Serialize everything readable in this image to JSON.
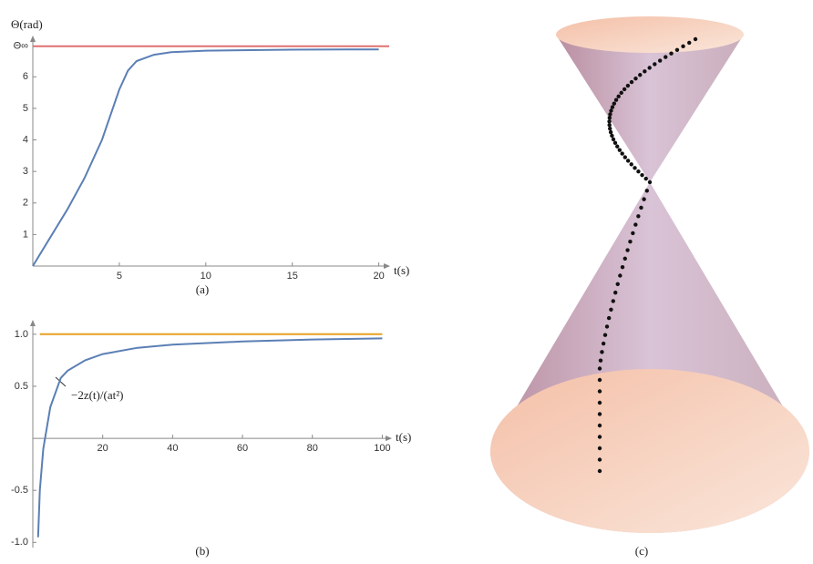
{
  "chart_data": [
    {
      "type": "line",
      "caption": "(a)",
      "y_label": "Θ(rad)",
      "x_label": "t(s)",
      "xlim": [
        0,
        20.6
      ],
      "ylim": [
        0,
        7.28
      ],
      "xticks": [
        5,
        10,
        15,
        20
      ],
      "yticks": [
        1,
        2,
        3,
        4,
        5,
        6,
        {
          "value": 6.97,
          "label": "Θ∞"
        }
      ],
      "series": [
        {
          "color": "#5b7fb5",
          "x": [
            0,
            1,
            2,
            3,
            4,
            4.5,
            5,
            5.5,
            6,
            7,
            8,
            10,
            15,
            20
          ],
          "values": [
            0,
            0.9,
            1.8,
            2.8,
            4.0,
            4.8,
            5.6,
            6.2,
            6.5,
            6.7,
            6.78,
            6.83,
            6.86,
            6.87
          ]
        },
        {
          "color": "#e07070",
          "x": [
            0,
            20.6
          ],
          "values": [
            6.97,
            6.97
          ]
        }
      ]
    },
    {
      "type": "line",
      "caption": "(b)",
      "x_label": "t(s)",
      "annotation": "−2z(t)/(at²)",
      "xlim": [
        0,
        102.5
      ],
      "ylim": [
        -1.05,
        1.13
      ],
      "xticks": [
        20,
        40,
        60,
        80,
        100
      ],
      "yticks": [
        {
          "value": -1,
          "label": "-1.0"
        },
        -0.5,
        0.5,
        {
          "value": 1,
          "label": "1.0"
        }
      ],
      "series": [
        {
          "color": "#5b7fb5",
          "x": [
            1.5,
            2,
            3,
            5,
            8,
            10,
            15,
            20,
            30,
            40,
            60,
            80,
            100
          ],
          "values": [
            -0.95,
            -0.5,
            -0.1,
            0.3,
            0.58,
            0.65,
            0.75,
            0.81,
            0.87,
            0.9,
            0.93,
            0.95,
            0.96
          ]
        },
        {
          "color": "#e8a020",
          "x": [
            2,
            100
          ],
          "values": [
            1,
            1
          ]
        }
      ]
    }
  ],
  "figure_c": {
    "caption": "(c)"
  }
}
